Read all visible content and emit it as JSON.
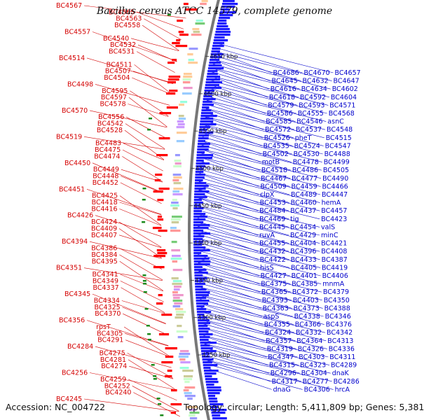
{
  "title": "Bacillus cereus ATCC 14579, complete genome",
  "footer": {
    "accession": "Accession: NC_004722",
    "summary": "Topology: circular; Length: 5,411,809 bp; Genes: 5,381"
  },
  "colors": {
    "left_labels": "#d40000",
    "right_labels": "#0000cc",
    "highlight_label": "#00a0e0",
    "backbone": "#777777",
    "forward_strand": "#1a1aff",
    "reverse_strand": "#ff0000",
    "rna_marker": "#1a8a1a"
  },
  "kbp_ticks": [
    "4250 kbp",
    "4300 kbp",
    "4350 kbp",
    "4400 kbp",
    "4450 kbp",
    "4500 kbp",
    "4550 kbp",
    "4600 kbp",
    "4650 kbp"
  ],
  "left_labels": [
    "BC4567",
    "BC4565",
    "BC4563",
    "BC4558",
    "BC4557",
    "BC4540",
    "BC4532",
    "BC4531",
    "BC4514",
    "BC4511",
    "BC4507",
    "BC4504",
    "BC4498",
    "BC4595",
    "BC4597",
    "BC4578",
    "BC4570",
    "BC4556",
    "BC4542",
    "BC4528",
    "BC4519",
    "BC4483",
    "BC4475",
    "BC4474",
    "BC4450",
    "BC4449",
    "BC4448",
    "BC4452",
    "BC4451",
    "BC4425",
    "BC4418",
    "BC4416",
    "BC4426",
    "BC4424",
    "BC4409",
    "BC4407",
    "BC4394",
    "BC4386",
    "BC4384",
    "BC4395",
    "BC4351",
    "BC4341",
    "BC4349",
    "BC4337",
    "BC4345",
    "BC4334",
    "BC4325",
    "BC4370",
    "BC4356",
    "rpsT",
    "BC4305",
    "BC4291",
    "BC4284",
    "BC4275",
    "BC4281",
    "BC4274",
    "BC4256",
    "BC4259",
    "BC4252",
    "BC4240",
    "BC4245"
  ],
  "right_labels": [
    "BC4686",
    "BC4670",
    "BC4657",
    "BC4645",
    "BC4632",
    "BC4647",
    "BC4616",
    "BC4634",
    "BC4602",
    "BC4618",
    "BC4592",
    "BC4604",
    "BC4579",
    "BC4593",
    "BC4571",
    "BC4586",
    "BC4555",
    "BC4568",
    "BC4585",
    "BC4546",
    "asnC",
    "BC4572",
    "BC4537",
    "BC4548",
    "BC4526",
    "pheT",
    "BC4515",
    "BC4535",
    "BC4524",
    "BC4547",
    "BC4502",
    "BC4530",
    "BC4488",
    "motB",
    "BC4478",
    "BC4499",
    "BC4518",
    "BC4486",
    "BC4505",
    "BC4467",
    "BC4477",
    "BC4490",
    "BC4509",
    "BC4459",
    "BC4466",
    "clpX",
    "BC4489",
    "BC4447",
    "BC4453",
    "BC4460",
    "hemA",
    "BC4484",
    "BC4437",
    "BC4457",
    "BC4469",
    "tig",
    "BC4423",
    "BC4445",
    "BC4454",
    "valS",
    "ruvA",
    "BC4429",
    "minC",
    "BC4455",
    "BC4404",
    "BC4421",
    "BC4432",
    "BC4396",
    "BC4408",
    "BC4422",
    "BC4433",
    "BC4387",
    "hisS",
    "BC4405",
    "BC4419",
    "BC4427",
    "BC4401",
    "BC4406",
    "BC4375",
    "BC4385",
    "mnmA",
    "BC4365",
    "BC4372",
    "BC4379",
    "BC4393",
    "BC4403",
    "BC4350",
    "BC4363",
    "BC4373",
    "BC4388",
    "aspS",
    "BC4338",
    "BC4346",
    "BC4355",
    "BC4366",
    "BC4376",
    "BC4324",
    "BC4332",
    "BC4342",
    "BC4357",
    "BC4364",
    "BC4313",
    "BC4319",
    "BC4326",
    "BC4336",
    "BC4347",
    "BC4303",
    "BC4311",
    "BC4315",
    "BC4323",
    "BC4289",
    "BC4296",
    "BC4304",
    "dnaK",
    "BC4317",
    "BC4277",
    "BC4286",
    "dnaG",
    "BC4306",
    "hrcA"
  ]
}
